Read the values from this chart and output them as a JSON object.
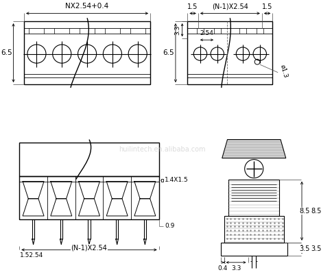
{
  "background_color": "#ffffff",
  "line_color": "#000000",
  "watermark_text": "huilintech.en.alibaba.com",
  "watermark_color": "#cccccc",
  "tl_label_w": "NX2.54+0.4",
  "tl_label_h": "6.5",
  "tr_label_tl": "1.5",
  "tr_label_tm": "(N-1)X2.54",
  "tr_label_tr": "1.5",
  "tr_label_inner": "2.54",
  "tr_label_lh": "6.5",
  "tr_label_lv": "3.3",
  "tr_label_dia": "ø1.3",
  "bl_label_bl": "1.52.54",
  "bl_label_b": "(N-1)X2.54",
  "bl_label_r1": "1.4X1.5",
  "bl_label_r2": "0.9",
  "br_label_r1": "8.5",
  "br_label_r2": "3.5",
  "br_label_b1": "0.4",
  "br_label_b2": "3.3"
}
